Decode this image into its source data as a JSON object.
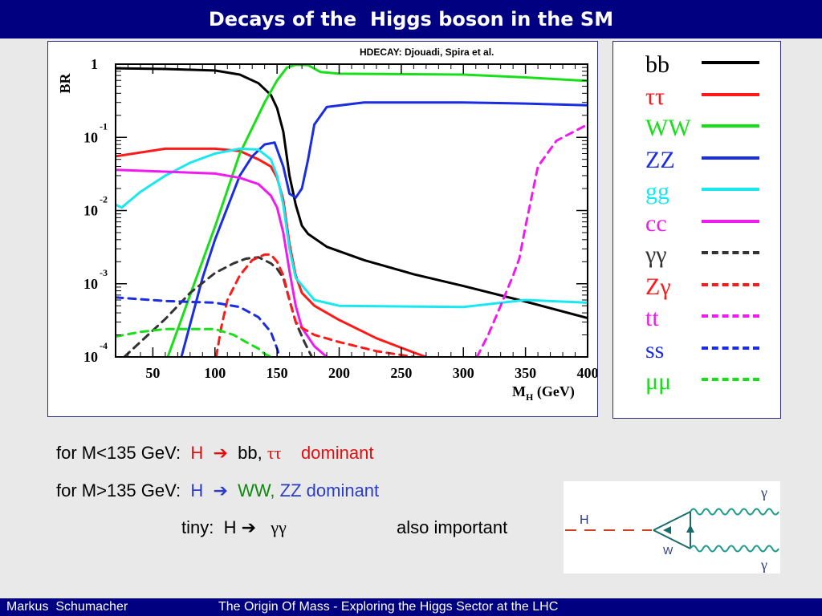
{
  "slide": {
    "title": "Decays of the  Higgs boson in the SM"
  },
  "chart_data": {
    "type": "line",
    "annotation": "HDECAY:  Djouadi, Spira et al.",
    "ylabel": "BR",
    "xlabel_main": "M",
    "xlabel_sub": "H",
    "xlabel_unit": " (GeV)",
    "yscale": "log",
    "xlim": [
      20,
      400
    ],
    "ylim": [
      0.0001,
      1
    ],
    "x_ticks": [
      50,
      100,
      150,
      200,
      250,
      300,
      350,
      400
    ],
    "y_ticks": [
      {
        "base": "1",
        "exp": "",
        "value": 1
      },
      {
        "base": "10",
        "exp": "-1",
        "value": 0.1
      },
      {
        "base": "10",
        "exp": "-2",
        "value": 0.01
      },
      {
        "base": "10",
        "exp": "-3",
        "value": 0.001
      },
      {
        "base": "10",
        "exp": "-4",
        "value": 0.0001
      }
    ],
    "series": [
      {
        "name": "bb",
        "color": "#000000",
        "dashed": false,
        "x": [
          20,
          60,
          100,
          120,
          135,
          145,
          150,
          155,
          160,
          165,
          170,
          175,
          190,
          220,
          260,
          300,
          350,
          400
        ],
        "y": [
          0.88,
          0.86,
          0.82,
          0.72,
          0.55,
          0.38,
          0.25,
          0.12,
          0.03,
          0.012,
          0.0062,
          0.0048,
          0.0032,
          0.0021,
          0.00135,
          0.00093,
          0.00057,
          0.00034
        ]
      },
      {
        "name": "ττ",
        "color": "#ff1a1a",
        "dashed": false,
        "x": [
          20,
          60,
          100,
          120,
          135,
          145,
          150,
          155,
          160,
          165,
          170,
          180,
          200,
          230,
          260,
          270
        ],
        "y": [
          0.055,
          0.07,
          0.07,
          0.065,
          0.05,
          0.04,
          0.028,
          0.014,
          0.0035,
          0.0013,
          0.00075,
          0.0005,
          0.00032,
          0.00018,
          0.000115,
          0.0001
        ]
      },
      {
        "name": "WW",
        "color": "#18e018",
        "dashed": false,
        "x": [
          62,
          80,
          100,
          120,
          140,
          150,
          158,
          165,
          175,
          185,
          200,
          300,
          350,
          400
        ],
        "y": [
          0.0001,
          0.0007,
          0.006,
          0.06,
          0.3,
          0.6,
          0.9,
          0.98,
          0.97,
          0.78,
          0.74,
          0.72,
          0.66,
          0.59
        ]
      },
      {
        "name": "ZZ",
        "color": "#1a2de0",
        "dashed": false,
        "x": [
          73,
          90,
          100,
          110,
          120,
          130,
          140,
          148,
          155,
          160,
          165,
          170,
          175,
          180,
          190,
          220,
          300,
          350,
          400
        ],
        "y": [
          0.0001,
          0.0012,
          0.004,
          0.011,
          0.03,
          0.055,
          0.08,
          0.085,
          0.04,
          0.017,
          0.015,
          0.02,
          0.05,
          0.15,
          0.26,
          0.3,
          0.3,
          0.29,
          0.275
        ]
      },
      {
        "name": "gg",
        "color": "#19e8f0",
        "dashed": false,
        "x": [
          20,
          25,
          30,
          40,
          60,
          80,
          100,
          120,
          135,
          145,
          150,
          155,
          160,
          165,
          180,
          200,
          300,
          350,
          400
        ],
        "y": [
          0.012,
          0.011,
          0.013,
          0.018,
          0.03,
          0.045,
          0.06,
          0.07,
          0.068,
          0.05,
          0.03,
          0.012,
          0.003,
          0.0012,
          0.0006,
          0.0005,
          0.00048,
          0.0006,
          0.00055
        ]
      },
      {
        "name": "cc",
        "color": "#f01af0",
        "dashed": false,
        "x": [
          20,
          60,
          100,
          120,
          135,
          145,
          150,
          155,
          160,
          165,
          170,
          180,
          190
        ],
        "y": [
          0.036,
          0.034,
          0.032,
          0.028,
          0.023,
          0.016,
          0.011,
          0.005,
          0.0015,
          0.0005,
          0.00025,
          0.00014,
          0.0001
        ]
      },
      {
        "name": "γγ",
        "color": "#333333",
        "dashed": true,
        "x": [
          27,
          40,
          60,
          80,
          100,
          115,
          125,
          135,
          145,
          150,
          155,
          160,
          165,
          172,
          178
        ],
        "y": [
          0.0001,
          0.00016,
          0.00033,
          0.00075,
          0.0014,
          0.0019,
          0.0022,
          0.0023,
          0.0019,
          0.0016,
          0.0012,
          0.0006,
          0.0003,
          0.00016,
          0.0001
        ]
      },
      {
        "name": "Zγ",
        "color": "#ff1a1a",
        "dashed": true,
        "x": [
          101,
          105,
          110,
          120,
          130,
          140,
          145,
          150,
          155,
          160,
          165,
          170,
          180,
          200,
          230,
          260
        ],
        "y": [
          0.0001,
          0.00025,
          0.0006,
          0.0013,
          0.0021,
          0.0025,
          0.0025,
          0.002,
          0.0013,
          0.0006,
          0.0003,
          0.00025,
          0.0002,
          0.00016,
          0.00012,
          0.0001
        ]
      },
      {
        "name": "tt",
        "color": "#f01af0",
        "dashed": true,
        "x": [
          311,
          320,
          330,
          340,
          345,
          350,
          360,
          375,
          400
        ],
        "y": [
          0.0001,
          0.0002,
          0.0005,
          0.0013,
          0.0022,
          0.006,
          0.04,
          0.09,
          0.15
        ]
      },
      {
        "name": "ss",
        "color": "#1a2de0",
        "dashed": true,
        "x": [
          20,
          60,
          100,
          120,
          135,
          145,
          150,
          152
        ],
        "y": [
          0.00065,
          0.00058,
          0.00055,
          0.00048,
          0.00035,
          0.00022,
          0.00013,
          0.0001
        ]
      },
      {
        "name": "μμ",
        "color": "#18e018",
        "dashed": true,
        "x": [
          20,
          40,
          60,
          80,
          100,
          115,
          125,
          135,
          140,
          145
        ],
        "y": [
          0.00019,
          0.00022,
          0.00024,
          0.00024,
          0.00024,
          0.0002,
          0.00016,
          0.00013,
          0.00011,
          0.0001
        ]
      }
    ]
  },
  "legend": {
    "items": [
      {
        "label": "bb",
        "color": "#000000",
        "dashed": false
      },
      {
        "label": "ττ",
        "color": "#ff1a1a",
        "dashed": false
      },
      {
        "label": "WW",
        "color": "#18e018",
        "dashed": false
      },
      {
        "label": "ZZ",
        "color": "#1a2de0",
        "dashed": false
      },
      {
        "label": "gg",
        "color": "#19e8f0",
        "dashed": false
      },
      {
        "label": "cc",
        "color": "#f01af0",
        "dashed": false
      },
      {
        "label": "γγ",
        "color": "#333333",
        "dashed": true
      },
      {
        "label": "Zγ",
        "color": "#ff1a1a",
        "dashed": true
      },
      {
        "label": "tt",
        "color": "#f01af0",
        "dashed": true
      },
      {
        "label": "ss",
        "color": "#1a2de0",
        "dashed": true
      },
      {
        "label": "μμ",
        "color": "#18e018",
        "dashed": true
      }
    ]
  },
  "text": {
    "line1": {
      "prefix": "for M<135 GeV:  ",
      "h": "H",
      "arrow": "  ➔  ",
      "bb": "bb, ",
      "tautau": "ττ",
      "dominant": "    dominant"
    },
    "line2": {
      "prefix": "for M>135 GeV:  ",
      "h": "H",
      "arrow": "  ➔  ",
      "ww": "WW, ",
      "zz": "ZZ ",
      "dominant": "dominant"
    },
    "line3": {
      "prefix": "tiny:  H ➔   ",
      "gamma": "γγ",
      "suffix": "also important"
    }
  },
  "feynman": {
    "h_label": "H",
    "w_label": "W",
    "gamma_top": "γ",
    "gamma_bottom": "γ"
  },
  "footer": {
    "author": "Markus  Schumacher",
    "talk": "The Origin Of Mass - Exploring the Higgs Sector at the LHC"
  },
  "colors": {
    "title_bg": "#000080",
    "red": "#e01010",
    "green": "#0f8a0f",
    "blue": "#2a3cc8",
    "purple_label": "#5050a0"
  }
}
